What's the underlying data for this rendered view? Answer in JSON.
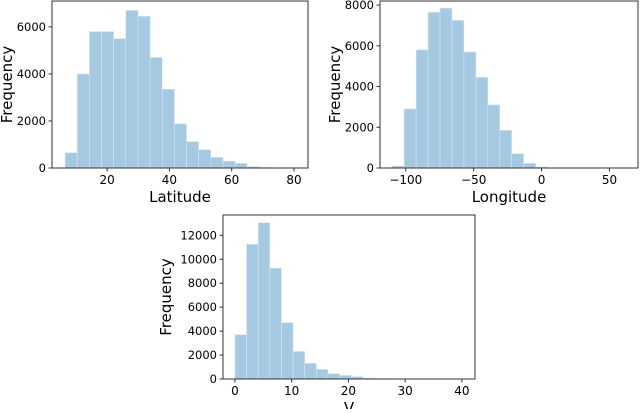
{
  "chart_data": [
    {
      "type": "bar",
      "xlabel": "Latitude",
      "ylabel": "Frequency",
      "xlim": [
        2.3,
        84.5
      ],
      "ylim": [
        0,
        7100
      ],
      "xticks": [
        20,
        40,
        60,
        80
      ],
      "yticks": [
        0,
        2000,
        4000,
        6000
      ],
      "bin_start": 6.5,
      "bin_width": 3.9,
      "values": [
        650,
        4000,
        5800,
        5800,
        5500,
        6700,
        6450,
        4700,
        3350,
        1880,
        1120,
        780,
        450,
        290,
        200,
        60,
        20,
        10,
        5,
        5
      ],
      "grid": false,
      "bar_color": "#a5c9e1"
    },
    {
      "type": "bar",
      "xlabel": "Longitude",
      "ylabel": "Frequency",
      "xlim": [
        -119,
        71
      ],
      "ylim": [
        0,
        8200
      ],
      "xticks": [
        -100,
        -50,
        0,
        50
      ],
      "yticks": [
        0,
        2000,
        4000,
        6000,
        8000
      ],
      "bin_start": -110,
      "bin_width": 8.8,
      "values": [
        100,
        2900,
        5800,
        7650,
        7850,
        7250,
        5700,
        4450,
        3100,
        1850,
        700,
        230,
        50,
        10,
        5,
        5,
        3,
        3,
        2,
        2
      ],
      "grid": false,
      "bar_color": "#a5c9e1"
    },
    {
      "type": "bar",
      "xlabel": "V",
      "ylabel": "Frequency",
      "xlim": [
        -2.1,
        42.3
      ],
      "ylim": [
        0,
        13700
      ],
      "xticks": [
        0,
        10,
        20,
        30,
        40
      ],
      "yticks": [
        0,
        2000,
        4000,
        6000,
        8000,
        10000,
        12000
      ],
      "bin_start": 0,
      "bin_width": 2.05,
      "values": [
        3700,
        11250,
        13050,
        9250,
        4700,
        2300,
        1300,
        800,
        450,
        300,
        200,
        80,
        40,
        20,
        10,
        5,
        3,
        2,
        2,
        2
      ],
      "grid": false,
      "bar_color": "#a5c9e1"
    }
  ]
}
